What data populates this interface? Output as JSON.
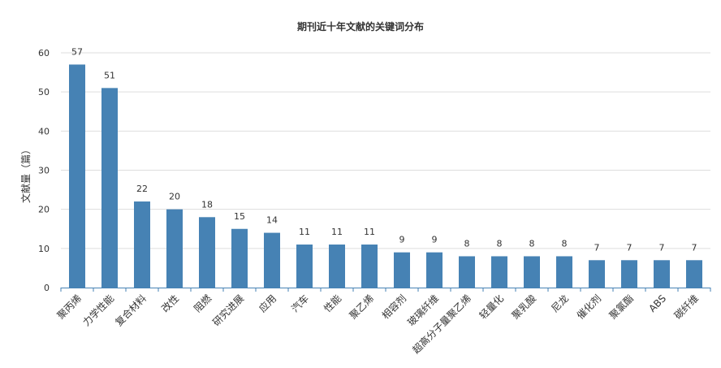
{
  "chart_data": {
    "type": "bar",
    "title": "期刊近十年文献的关键词分布",
    "xlabel": "",
    "ylabel": "文献量（篇）",
    "ylim": [
      0,
      60
    ],
    "yticks": [
      0,
      10,
      20,
      30,
      40,
      50,
      60
    ],
    "grid": true,
    "categories": [
      "聚丙烯",
      "力学性能",
      "复合材料",
      "改性",
      "阻燃",
      "研究进展",
      "应用",
      "汽车",
      "性能",
      "聚乙烯",
      "相容剂",
      "玻璃纤维",
      "超高分子量聚乙烯",
      "轻量化",
      "聚乳酸",
      "尼龙",
      "催化剂",
      "聚氯酯",
      "ABS",
      "碳纤维"
    ],
    "values": [
      57,
      51,
      22,
      20,
      18,
      15,
      14,
      11,
      11,
      11,
      9,
      9,
      8,
      8,
      8,
      8,
      7,
      7,
      7,
      7
    ],
    "bar_color": "#4682b4"
  }
}
